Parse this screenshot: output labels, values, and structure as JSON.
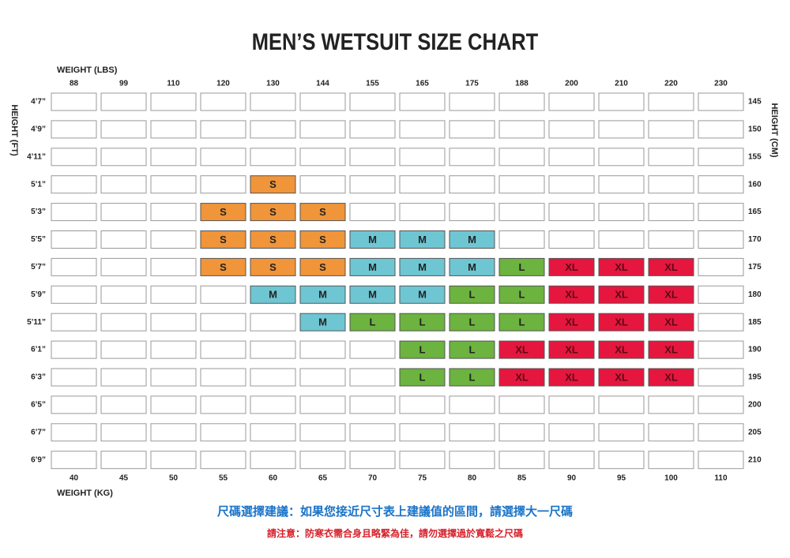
{
  "title": "MEN’S WETSUIT SIZE CHART",
  "weight_lbs_label": "WEIGHT (LBS)",
  "weight_kg_label": "WEIGHT (KG)",
  "height_ft_label": "HEIGHT (FT)",
  "height_cm_label": "HEIGHT (CM)",
  "weight_lbs": [
    88,
    99,
    110,
    120,
    130,
    144,
    155,
    165,
    175,
    188,
    200,
    210,
    220,
    230
  ],
  "weight_kg": [
    40,
    45,
    50,
    55,
    60,
    65,
    70,
    75,
    80,
    85,
    90,
    95,
    100,
    110
  ],
  "height_ft": [
    "4’7”",
    "4’9”",
    "4’11”",
    "5’1”",
    "5’3”",
    "5’5”",
    "5’7”",
    "5’9”",
    "5’11”",
    "6’1”",
    "6’3”",
    "6’5”",
    "6’7”",
    "6’9”"
  ],
  "height_cm": [
    145,
    150,
    155,
    160,
    165,
    170,
    175,
    180,
    185,
    190,
    195,
    200,
    205,
    210
  ],
  "size_colors": {
    "S": "#f0953a",
    "M": "#6fc6d3",
    "L": "#6cb33f",
    "XL": "#e5173f"
  },
  "rows": [
    [
      null,
      null,
      null,
      null,
      null,
      null,
      null,
      null,
      null,
      null,
      null,
      null,
      null,
      null
    ],
    [
      null,
      null,
      null,
      null,
      null,
      null,
      null,
      null,
      null,
      null,
      null,
      null,
      null,
      null
    ],
    [
      null,
      null,
      null,
      null,
      null,
      null,
      null,
      null,
      null,
      null,
      null,
      null,
      null,
      null
    ],
    [
      null,
      null,
      null,
      null,
      "S",
      null,
      null,
      null,
      null,
      null,
      null,
      null,
      null,
      null
    ],
    [
      null,
      null,
      null,
      "S",
      "S",
      "S",
      null,
      null,
      null,
      null,
      null,
      null,
      null,
      null
    ],
    [
      null,
      null,
      null,
      "S",
      "S",
      "S",
      "M",
      "M",
      "M",
      null,
      null,
      null,
      null,
      null
    ],
    [
      null,
      null,
      null,
      "S",
      "S",
      "S",
      "M",
      "M",
      "M",
      "L",
      "XL",
      "XL",
      "XL",
      null
    ],
    [
      null,
      null,
      null,
      null,
      "M",
      "M",
      "M",
      "M",
      "L",
      "L",
      "XL",
      "XL",
      "XL",
      null
    ],
    [
      null,
      null,
      null,
      null,
      null,
      "M",
      "L",
      "L",
      "L",
      "L",
      "XL",
      "XL",
      "XL",
      null
    ],
    [
      null,
      null,
      null,
      null,
      null,
      null,
      null,
      "L",
      "L",
      "XL",
      "XL",
      "XL",
      "XL",
      null
    ],
    [
      null,
      null,
      null,
      null,
      null,
      null,
      null,
      "L",
      "L",
      "XL",
      "XL",
      "XL",
      "XL",
      null
    ],
    [
      null,
      null,
      null,
      null,
      null,
      null,
      null,
      null,
      null,
      null,
      null,
      null,
      null,
      null
    ],
    [
      null,
      null,
      null,
      null,
      null,
      null,
      null,
      null,
      null,
      null,
      null,
      null,
      null,
      null
    ],
    [
      null,
      null,
      null,
      null,
      null,
      null,
      null,
      null,
      null,
      null,
      null,
      null,
      null,
      null
    ]
  ],
  "note_blue": "尺碼選擇建議：如果您接近尺寸表上建議值的區間，請選擇大一尺碼",
  "note_red": "請注意：防寒衣需合身且略緊為佳，請勿選擇過於寬鬆之尺碼"
}
